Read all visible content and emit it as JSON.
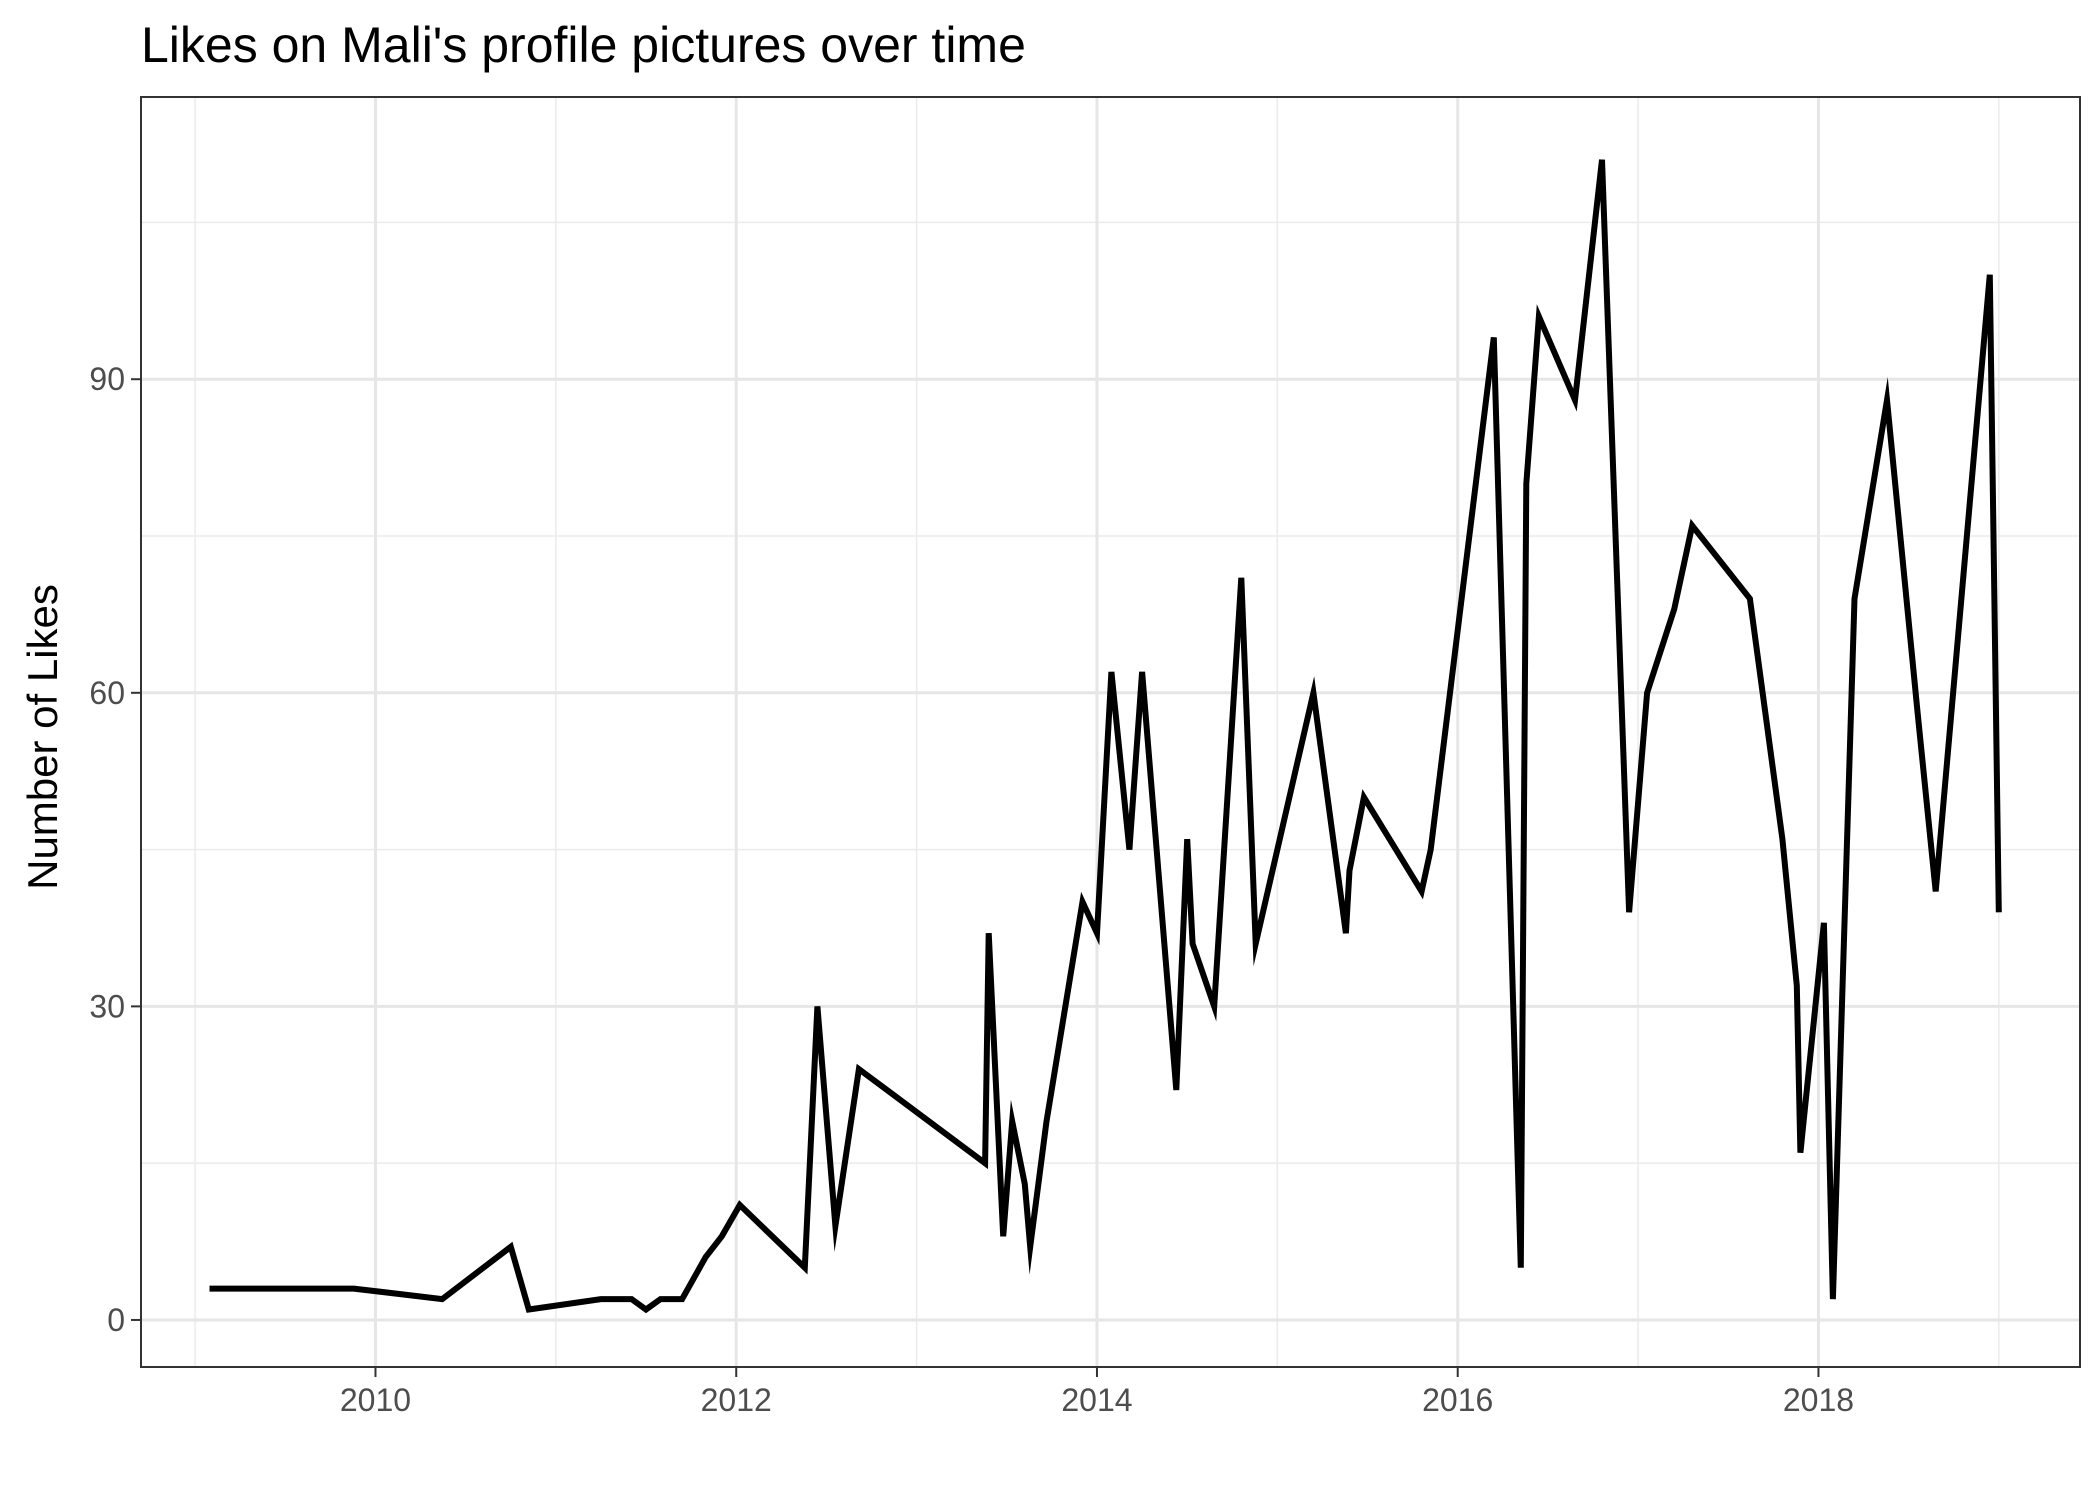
{
  "chart_data": {
    "type": "line",
    "title": "Likes on Mali's profile pictures over time",
    "xlabel": "",
    "ylabel": "Number of Likes",
    "x_ticks": [
      "2010",
      "2012",
      "2014",
      "2016",
      "2018"
    ],
    "y_ticks": [
      "0",
      "30",
      "60",
      "90"
    ],
    "xlim": [
      2008.7,
      2019.45
    ],
    "ylim": [
      -4.5,
      117
    ],
    "grid": true,
    "legend": "none",
    "line_color": "#000000",
    "series": [
      {
        "x": [
          2009.08,
          2009.88,
          2010.37,
          2010.75,
          2010.85,
          2011.25,
          2011.42,
          2011.5,
          2011.58,
          2011.7,
          2011.83,
          2011.92,
          2012.02,
          2012.38,
          2012.45,
          2012.55,
          2012.68,
          2013.38,
          2013.4,
          2013.48,
          2013.53,
          2013.6,
          2013.63,
          2013.72,
          2013.92,
          2014.0,
          2014.08,
          2014.18,
          2014.25,
          2014.44,
          2014.5,
          2014.53,
          2014.65,
          2014.8,
          2014.88,
          2015.2,
          2015.38,
          2015.4,
          2015.48,
          2015.8,
          2015.85,
          2016.2,
          2016.35,
          2016.38,
          2016.45,
          2016.65,
          2016.8,
          2016.95,
          2017.05,
          2017.2,
          2017.3,
          2017.62,
          2017.8,
          2017.88,
          2017.9,
          2018.03,
          2018.08,
          2018.2,
          2018.38,
          2018.55,
          2018.65,
          2018.95,
          2019.0
        ],
        "y": [
          3,
          3,
          2,
          7,
          1,
          2,
          2,
          1,
          2,
          2,
          6,
          8,
          11,
          5,
          30,
          9,
          24,
          15,
          37,
          8,
          19,
          13,
          7,
          19,
          40,
          37,
          62,
          45,
          62,
          22,
          46,
          36,
          30,
          71,
          36,
          60,
          37,
          43,
          50,
          41,
          45,
          94,
          5,
          80,
          96,
          88,
          111,
          39,
          60,
          68,
          76,
          69,
          46,
          32,
          16,
          38,
          2,
          69,
          88,
          58,
          41,
          100,
          39
        ]
      }
    ]
  }
}
